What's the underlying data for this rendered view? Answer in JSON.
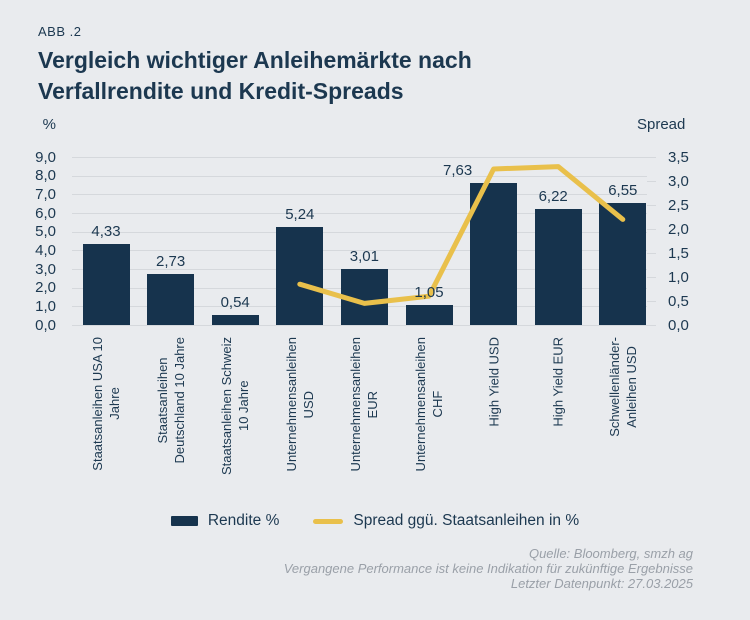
{
  "header": {
    "kicker": "ABB .2",
    "title": "Vergleich wichtiger Anleihemärkte nach\nVerfallrendite und Kredit-Spreads"
  },
  "chart_data": {
    "type": "bar",
    "title": "Vergleich wichtiger Anleihemärkte nach Verfallrendite und Kredit-Spreads",
    "categories": [
      "Staatsanleihen USA 10\nJahre",
      "Staatsanleihen\nDeutschland 10 Jahre",
      "Staatsanleihen Schweiz\n10 Jahre",
      "Unternehmensanleihen\nUSD",
      "Unternehmensanleihen\nEUR",
      "Unternehmensanleihen\nCHF",
      "High Yield USD",
      "High Yield EUR",
      "Schwellenländer-\nAnleihen USD"
    ],
    "series": [
      {
        "name": "Rendite %",
        "type": "bar",
        "axis": "left",
        "color": "#16334d",
        "values": [
          4.33,
          2.73,
          0.54,
          5.24,
          3.01,
          1.05,
          7.63,
          6.22,
          6.55
        ],
        "value_labels": [
          "4,33",
          "2,73",
          "0,54",
          "5,24",
          "3,01",
          "1,05",
          "7,63",
          "6,22",
          "6,55"
        ]
      },
      {
        "name": "Spread ggü. Staatsanleihen in %",
        "type": "line",
        "axis": "right",
        "color": "#e9c04b",
        "values": [
          null,
          null,
          null,
          0.85,
          0.45,
          0.6,
          3.25,
          3.3,
          2.2
        ]
      }
    ],
    "left_axis": {
      "label": "%",
      "min": 0,
      "max": 9,
      "step": 1,
      "tick_labels": [
        "0,0",
        "1,0",
        "2,0",
        "3,0",
        "4,0",
        "5,0",
        "6,0",
        "7,0",
        "8,0",
        "9,0"
      ]
    },
    "right_axis": {
      "label": "Spread",
      "min": 0,
      "max": 3.5,
      "step": 0.5,
      "tick_labels": [
        "0,0",
        "0,5",
        "1,0",
        "1,5",
        "2,0",
        "2,5",
        "3,0",
        "3,5"
      ]
    },
    "grid": true,
    "legend_position": "bottom"
  },
  "footer": {
    "text": "Quelle: Bloomberg, smzh ag\nVergangene Performance ist keine Indikation für zukünftige Ergebnisse\nLetzter Datenpunkt: 27.03.2025"
  },
  "colors": {
    "background": "#e9ebee",
    "ink": "#1c3850",
    "bar": "#16334d",
    "line": "#e9c04b",
    "grid": "#d5d8dc",
    "footer_text": "#9aa0a8"
  }
}
